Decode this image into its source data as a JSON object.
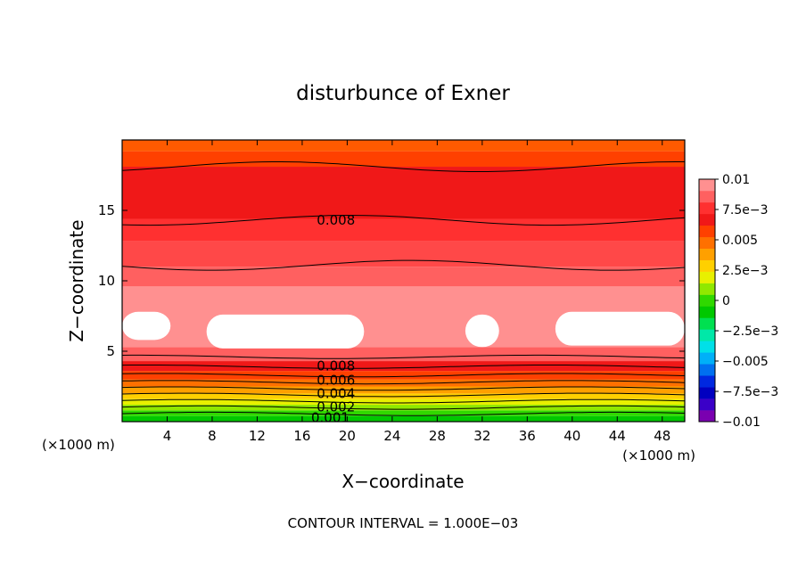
{
  "chart_data": {
    "type": "heatmap",
    "title": "disturbunce of Exner",
    "xlabel": "X−coordinate",
    "ylabel": "Z−coordinate",
    "x_unit_left": "(×1000 m)",
    "x_unit_right": "(×1000 m)",
    "footer": "CONTOUR INTERVAL = 1.000E−03",
    "xlim": [
      0,
      50
    ],
    "ylim": [
      0,
      20
    ],
    "x_ticks": [
      4,
      8,
      12,
      16,
      20,
      24,
      28,
      32,
      36,
      40,
      44,
      48
    ],
    "y_ticks": [
      5,
      10,
      15
    ],
    "colorbar": {
      "labels": [
        "0.01",
        "7.5e−3",
        "0.005",
        "2.5e−3",
        "0",
        "−2.5e−3",
        "−0.005",
        "−7.5e−3",
        "−0.01"
      ],
      "label_values": [
        0.01,
        0.0075,
        0.005,
        0.0025,
        0,
        -0.0025,
        -0.005,
        -0.0075,
        -0.01
      ],
      "range": [
        -0.01,
        0.01
      ],
      "colors": [
        "#7a00b0",
        "#3a00c8",
        "#0000c0",
        "#0028e0",
        "#0070f0",
        "#00b0f8",
        "#00e0e8",
        "#00e8a8",
        "#00e050",
        "#00c800",
        "#30d800",
        "#90e800",
        "#e8f000",
        "#ffd000",
        "#ffa000",
        "#ff7000",
        "#ff4000",
        "#f01818",
        "#ff3030",
        "#ff6060",
        "#ff9090"
      ]
    },
    "bands": [
      {
        "z": [
          0.0,
          0.4
        ],
        "value": 0.0005,
        "color": "#00c800"
      },
      {
        "z": [
          0.4,
          0.8
        ],
        "value": 0.0015,
        "color": "#30d800"
      },
      {
        "z": [
          0.8,
          1.2
        ],
        "value": 0.0025,
        "color": "#90e800"
      },
      {
        "z": [
          1.2,
          1.6
        ],
        "value": 0.0035,
        "color": "#e8f000"
      },
      {
        "z": [
          1.6,
          2.0
        ],
        "value": 0.0045,
        "color": "#ffd000"
      },
      {
        "z": [
          2.0,
          2.5
        ],
        "value": 0.0055,
        "color": "#ffa000"
      },
      {
        "z": [
          2.5,
          3.0
        ],
        "value": 0.0065,
        "color": "#ff7000"
      },
      {
        "z": [
          3.0,
          3.6
        ],
        "value": 0.0075,
        "color": "#ff4000"
      },
      {
        "z": [
          3.6,
          4.3
        ],
        "value": 0.0085,
        "color": "#f01818"
      },
      {
        "z": [
          4.3,
          5.3
        ],
        "value": 0.0092,
        "color": "#ff6060"
      },
      {
        "z": [
          5.3,
          9.6
        ],
        "value": 0.0098,
        "color": "#ff9090"
      },
      {
        "z": [
          9.6,
          11.0
        ],
        "value": 0.0093,
        "color": "#ff6060"
      },
      {
        "z": [
          11.0,
          12.8
        ],
        "value": 0.0087,
        "color": "#ff4848"
      },
      {
        "z": [
          12.8,
          14.4
        ],
        "value": 0.0082,
        "color": "#ff3030"
      },
      {
        "z": [
          14.4,
          18.1
        ],
        "value": 0.0078,
        "color": "#f01818"
      },
      {
        "z": [
          18.1,
          19.2
        ],
        "value": 0.0072,
        "color": "#ff4000"
      },
      {
        "z": [
          19.2,
          20.0
        ],
        "value": 0.0068,
        "color": "#ff5a00"
      }
    ],
    "above_max_regions": [
      {
        "x": [
          0,
          4.3
        ],
        "z": [
          5.8,
          7.8
        ]
      },
      {
        "x": [
          7.5,
          21.5
        ],
        "z": [
          5.2,
          7.6
        ]
      },
      {
        "x": [
          30.5,
          33.5
        ],
        "z": [
          5.3,
          7.6
        ]
      },
      {
        "x": [
          38.5,
          50
        ],
        "z": [
          5.4,
          7.8
        ]
      }
    ],
    "contours": [
      {
        "value": 0.001,
        "z": 0.55
      },
      {
        "value": 0.002,
        "z": 1.0
      },
      {
        "value": 0.003,
        "z": 1.45
      },
      {
        "value": 0.004,
        "z": 1.9
      },
      {
        "value": 0.005,
        "z": 2.35
      },
      {
        "value": 0.006,
        "z": 2.8
      },
      {
        "value": 0.007,
        "z": 3.3
      },
      {
        "value": 0.008,
        "z": 3.9
      },
      {
        "value": 0.009,
        "z": 4.6
      },
      {
        "value": 0.009,
        "z": 11.1
      },
      {
        "value": 0.008,
        "z": 14.3
      },
      {
        "value": 0.007,
        "z": 18.1
      }
    ],
    "contour_labels": [
      {
        "text": "0.008",
        "x": 19,
        "z": 14.3
      },
      {
        "text": "0.008",
        "x": 19,
        "z": 3.95
      },
      {
        "text": "0.006",
        "x": 19,
        "z": 2.95
      },
      {
        "text": "0.004",
        "x": 19,
        "z": 2.0
      },
      {
        "text": "0.002",
        "x": 19,
        "z": 1.05
      },
      {
        "text": "0.001",
        "x": 18.5,
        "z": 0.3
      }
    ],
    "grid": false,
    "legend": "colorbar-right"
  }
}
